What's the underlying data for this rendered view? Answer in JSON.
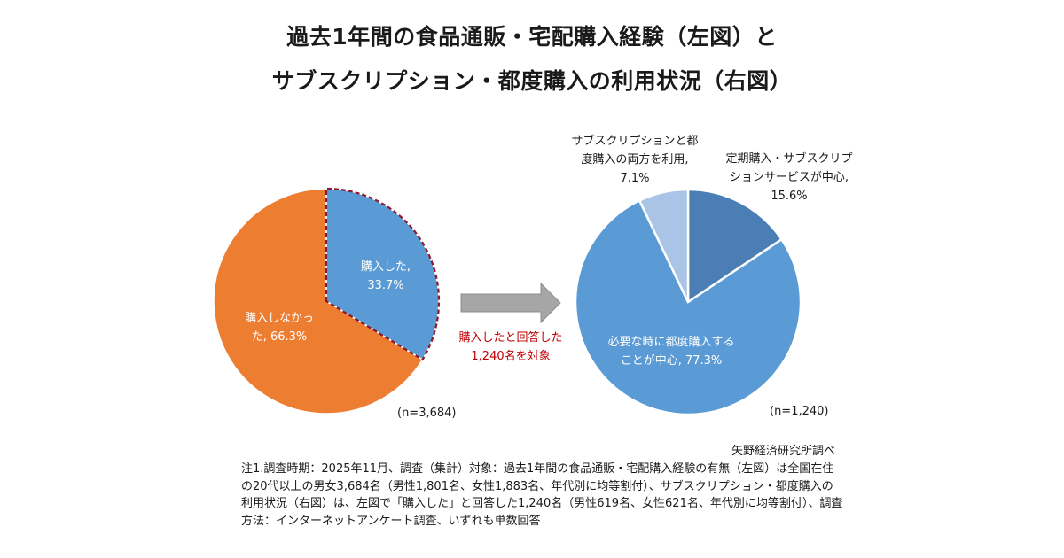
{
  "title_line1": "過去1年間の食品通販・宅配購入経験（左図）と",
  "title_line2": "サブスクリプション・都度購入の利用状況（右図）",
  "chart_data": [
    {
      "type": "pie",
      "title": "過去1年間の食品通販・宅配購入経験",
      "n_label": "(n=3,684)",
      "slices": [
        {
          "name": "購入した",
          "value": 33.7,
          "label_lines": [
            "購入した,",
            "33.7%"
          ],
          "color": "#5b9bd5",
          "highlight": true
        },
        {
          "name": "購入しなかった",
          "value": 66.3,
          "label_lines": [
            "購入しなかっ",
            "た, 66.3%"
          ],
          "color": "#ed7d31",
          "highlight": false
        }
      ]
    },
    {
      "type": "pie",
      "title": "サブスクリプション・都度購入の利用状況",
      "n_label": "(n=1,240)",
      "slices": [
        {
          "name": "定期購入・サブスクリプションサービスが中心",
          "value": 15.6,
          "label_lines": [
            "定期購入・サブスクリプ",
            "ションサービスが中心,",
            "15.6%"
          ],
          "color": "#4a7eb5"
        },
        {
          "name": "必要な時に都度購入することが中心",
          "value": 77.3,
          "label_lines": [
            "必要な時に都度購入する",
            "ことが中心, 77.3%"
          ],
          "color": "#5b9bd5"
        },
        {
          "name": "サブスクリプションと都度購入の両方を利用",
          "value": 7.1,
          "label_lines": [
            "サブスクリプションと都",
            "度購入の両方を利用,",
            "7.1%"
          ],
          "color": "#a9c4e4"
        }
      ]
    }
  ],
  "arrow_caption": [
    "購入したと回答した",
    "1,240名を対象"
  ],
  "source": "矢野経済研究所調べ",
  "note": "注1.調査時期：2025年11月、調査（集計）対象：過去1年間の食品通販・宅配購入経験の有無（左図）は全国在住の20代以上の男女3,684名（男性1,801名、女性1,883名、年代別に均等割付）、サブスクリプション・都度購入の利用状況（右図）は、左図で「購入した」と回答した1,240名（男性619名、女性621名、年代別に均等割付）、調査方法：インターネットアンケート調査、いずれも単数回答"
}
